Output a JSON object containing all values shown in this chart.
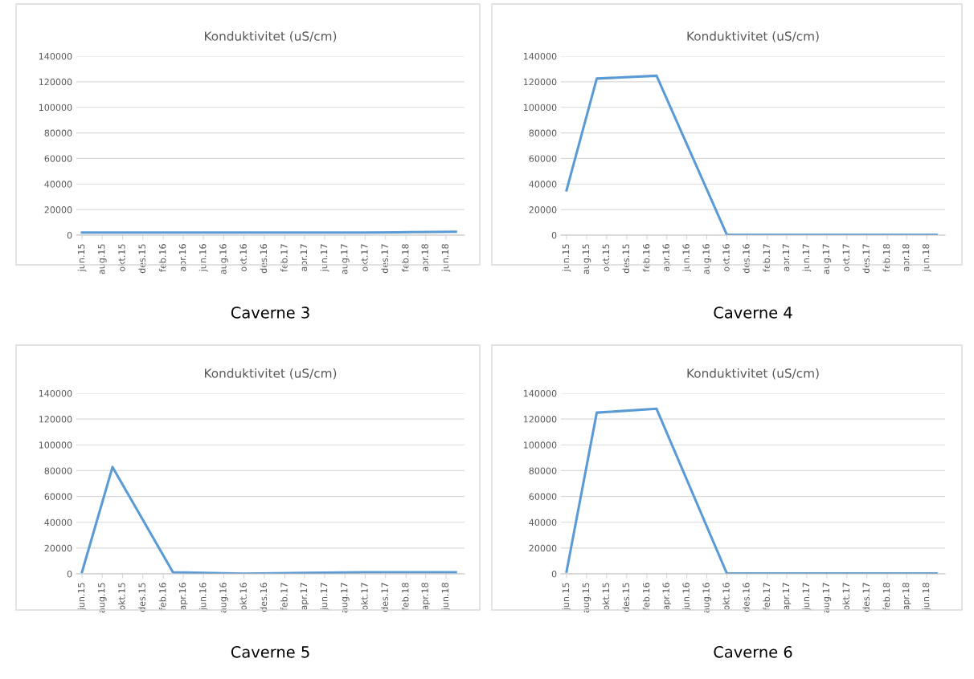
{
  "chart_data": [
    {
      "type": "line",
      "title": "Konduktivitet (uS/cm)",
      "annotations": [
        "Caverne 3"
      ],
      "x": [
        "2015-06",
        "2015-09",
        "2016-03",
        "2016-10",
        "2017-04",
        "2017-10",
        "2018-01",
        "2018-07"
      ],
      "series": [
        {
          "color": "#5b9bd5",
          "values": [
            2000,
            2000,
            2000,
            2000,
            2000,
            2000,
            2200,
            2700
          ]
        }
      ],
      "xlim": [
        "2015-05-15",
        "2018-07-27"
      ],
      "xticks": [
        {
          "value": "2015-06",
          "label": "jun.15"
        },
        {
          "value": "2015-08",
          "label": "aug.15"
        },
        {
          "value": "2015-10",
          "label": "okt.15"
        },
        {
          "value": "2015-12",
          "label": "des.15"
        },
        {
          "value": "2016-02",
          "label": "feb.16"
        },
        {
          "value": "2016-04",
          "label": "apr.16"
        },
        {
          "value": "2016-06",
          "label": "jun.16"
        },
        {
          "value": "2016-08",
          "label": "aug.16"
        },
        {
          "value": "2016-10",
          "label": "okt.16"
        },
        {
          "value": "2016-12",
          "label": "des.16"
        },
        {
          "value": "2017-02",
          "label": "feb.17"
        },
        {
          "value": "2017-04",
          "label": "apr.17"
        },
        {
          "value": "2017-06",
          "label": "jun.17"
        },
        {
          "value": "2017-08",
          "label": "aug.17"
        },
        {
          "value": "2017-10",
          "label": "okt.17"
        },
        {
          "value": "2017-12",
          "label": "des.17"
        },
        {
          "value": "2018-02",
          "label": "feb.18"
        },
        {
          "value": "2018-04",
          "label": "apr.18"
        },
        {
          "value": "2018-06",
          "label": "jun.18"
        }
      ],
      "ylim": [
        0,
        140000
      ],
      "yticks": [
        0,
        20000,
        40000,
        60000,
        80000,
        100000,
        120000,
        140000
      ],
      "grid": "y"
    },
    {
      "type": "line",
      "title": "Konduktivitet (uS/cm)",
      "annotations": [
        "Caverne 4"
      ],
      "x": [
        "2015-06",
        "2015-09",
        "2016-03",
        "2016-10",
        "2017-04",
        "2017-10",
        "2018-01",
        "2018-07"
      ],
      "series": [
        {
          "color": "#5b9bd5",
          "values": [
            35000,
            122500,
            124700,
            300,
            300,
            300,
            300,
            300
          ]
        }
      ],
      "xlim": [
        "2015-05-15",
        "2018-07-27"
      ],
      "xticks": [
        {
          "value": "2015-06",
          "label": "jun.15"
        },
        {
          "value": "2015-08",
          "label": "aug.15"
        },
        {
          "value": "2015-10",
          "label": "okt.15"
        },
        {
          "value": "2015-12",
          "label": "des.15"
        },
        {
          "value": "2016-02",
          "label": "feb.16"
        },
        {
          "value": "2016-04",
          "label": "apr.16"
        },
        {
          "value": "2016-06",
          "label": "jun.16"
        },
        {
          "value": "2016-08",
          "label": "aug.16"
        },
        {
          "value": "2016-10",
          "label": "okt.16"
        },
        {
          "value": "2016-12",
          "label": "des.16"
        },
        {
          "value": "2017-02",
          "label": "feb.17"
        },
        {
          "value": "2017-04",
          "label": "apr.17"
        },
        {
          "value": "2017-06",
          "label": "jun.17"
        },
        {
          "value": "2017-08",
          "label": "aug.17"
        },
        {
          "value": "2017-10",
          "label": "okt.17"
        },
        {
          "value": "2017-12",
          "label": "des.17"
        },
        {
          "value": "2018-02",
          "label": "feb.18"
        },
        {
          "value": "2018-04",
          "label": "apr.18"
        },
        {
          "value": "2018-06",
          "label": "jun.18"
        }
      ],
      "ylim": [
        0,
        140000
      ],
      "yticks": [
        0,
        20000,
        40000,
        60000,
        80000,
        100000,
        120000,
        140000
      ],
      "grid": "y"
    },
    {
      "type": "line",
      "title": "Konduktivitet (uS/cm)",
      "annotations": [
        "Caverne 5"
      ],
      "x": [
        "2015-06",
        "2015-09",
        "2016-03",
        "2016-10",
        "2017-04",
        "2017-10",
        "2018-01",
        "2018-07"
      ],
      "series": [
        {
          "color": "#5b9bd5",
          "values": [
            1400,
            82800,
            1200,
            100,
            700,
            1300,
            1300,
            1300
          ]
        }
      ],
      "xlim": [
        "2015-05-15",
        "2018-07-27"
      ],
      "xticks": [
        {
          "value": "2015-06",
          "label": "jun.15"
        },
        {
          "value": "2015-08",
          "label": "aug.15"
        },
        {
          "value": "2015-10",
          "label": "okt.15"
        },
        {
          "value": "2015-12",
          "label": "des.15"
        },
        {
          "value": "2016-02",
          "label": "feb.16"
        },
        {
          "value": "2016-04",
          "label": "apr.16"
        },
        {
          "value": "2016-06",
          "label": "jun.16"
        },
        {
          "value": "2016-08",
          "label": "aug.16"
        },
        {
          "value": "2016-10",
          "label": "okt.16"
        },
        {
          "value": "2016-12",
          "label": "des.16"
        },
        {
          "value": "2017-02",
          "label": "feb.17"
        },
        {
          "value": "2017-04",
          "label": "apr.17"
        },
        {
          "value": "2017-06",
          "label": "jun.17"
        },
        {
          "value": "2017-08",
          "label": "aug.17"
        },
        {
          "value": "2017-10",
          "label": "okt.17"
        },
        {
          "value": "2017-12",
          "label": "des.17"
        },
        {
          "value": "2018-02",
          "label": "feb.18"
        },
        {
          "value": "2018-04",
          "label": "apr.18"
        },
        {
          "value": "2018-06",
          "label": "jun.18"
        }
      ],
      "ylim": [
        0,
        140000
      ],
      "yticks": [
        0,
        20000,
        40000,
        60000,
        80000,
        100000,
        120000,
        140000
      ],
      "grid": "y"
    },
    {
      "type": "line",
      "title": "Konduktivitet (uS/cm)",
      "annotations": [
        "Caverne 6"
      ],
      "x": [
        "2015-06",
        "2015-09",
        "2016-03",
        "2016-10",
        "2017-04",
        "2017-10",
        "2018-01",
        "2018-07"
      ],
      "series": [
        {
          "color": "#5b9bd5",
          "values": [
            1700,
            125000,
            128000,
            300,
            300,
            300,
            300,
            300
          ]
        }
      ],
      "xlim": [
        "2015-05-15",
        "2018-07-27"
      ],
      "xticks": [
        {
          "value": "2015-06",
          "label": "jun.15"
        },
        {
          "value": "2015-08",
          "label": "aug.15"
        },
        {
          "value": "2015-10",
          "label": "okt.15"
        },
        {
          "value": "2015-12",
          "label": "des.15"
        },
        {
          "value": "2016-02",
          "label": "feb.16"
        },
        {
          "value": "2016-04",
          "label": "apr.16"
        },
        {
          "value": "2016-06",
          "label": "jun.16"
        },
        {
          "value": "2016-08",
          "label": "aug.16"
        },
        {
          "value": "2016-10",
          "label": "okt.16"
        },
        {
          "value": "2016-12",
          "label": "des.16"
        },
        {
          "value": "2017-02",
          "label": "feb.17"
        },
        {
          "value": "2017-04",
          "label": "apr.17"
        },
        {
          "value": "2017-06",
          "label": "jun.17"
        },
        {
          "value": "2017-08",
          "label": "aug.17"
        },
        {
          "value": "2017-10",
          "label": "okt.17"
        },
        {
          "value": "2017-12",
          "label": "des.17"
        },
        {
          "value": "2018-02",
          "label": "feb.18"
        },
        {
          "value": "2018-04",
          "label": "apr.18"
        },
        {
          "value": "2018-06",
          "label": "jun.18"
        }
      ],
      "ylim": [
        0,
        140000
      ],
      "yticks": [
        0,
        20000,
        40000,
        60000,
        80000,
        100000,
        120000,
        140000
      ],
      "grid": "y"
    }
  ]
}
